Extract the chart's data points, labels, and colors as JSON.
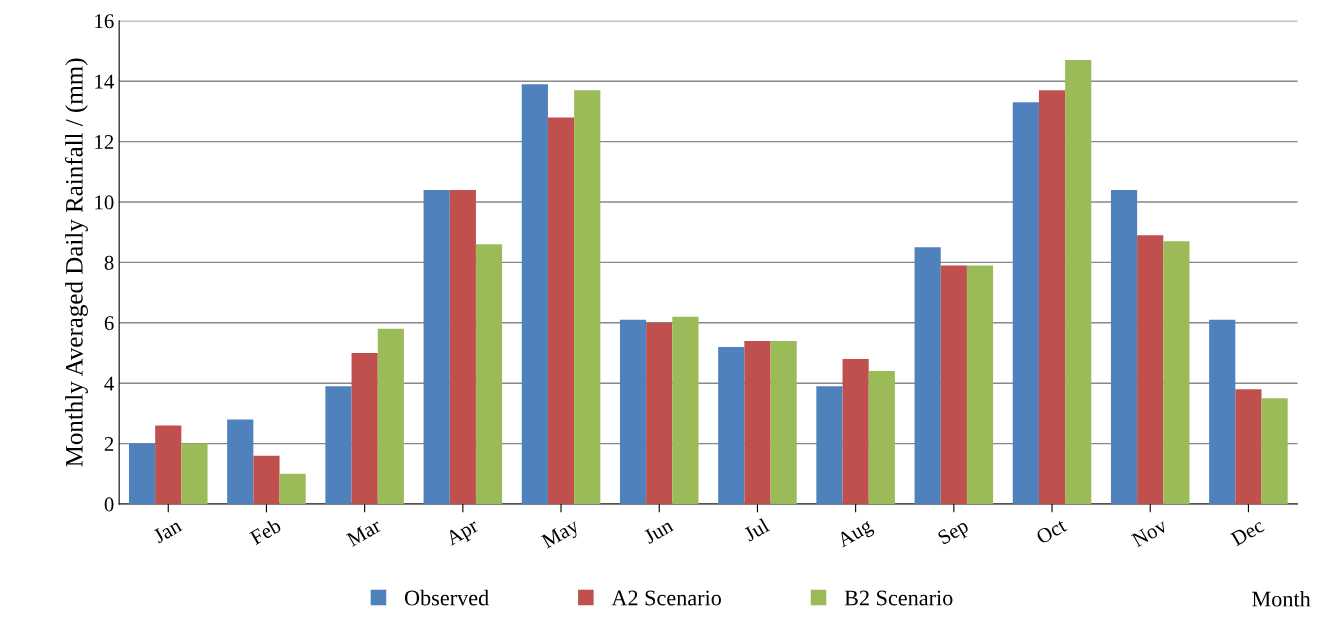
{
  "chart_data": {
    "type": "bar",
    "xlabel": "Month",
    "ylabel": "Monthly Averaged Daily Rainfall / (mm)",
    "categories": [
      "Jan",
      "Feb",
      "Mar",
      "Apr",
      "May",
      "Jun",
      "Jul",
      "Aug",
      "Sep",
      "Oct",
      "Nov",
      "Dec"
    ],
    "series": [
      {
        "name": "Observed",
        "color": "#4f81bd",
        "values": [
          2.0,
          2.8,
          3.9,
          10.4,
          13.9,
          6.1,
          5.2,
          3.9,
          8.5,
          13.3,
          10.4,
          6.1
        ]
      },
      {
        "name": "A2 Scenario",
        "color": "#c0504d",
        "values": [
          2.6,
          1.6,
          5.0,
          10.4,
          12.8,
          6.0,
          5.4,
          4.8,
          7.9,
          13.7,
          8.9,
          3.8
        ]
      },
      {
        "name": "B2 Scenario",
        "color": "#9bbb59",
        "values": [
          2.0,
          1.0,
          5.8,
          8.6,
          13.7,
          6.2,
          5.4,
          4.4,
          7.9,
          14.7,
          8.7,
          3.5
        ]
      }
    ],
    "ylim": [
      0,
      16
    ],
    "yticks": [
      0,
      2,
      4,
      6,
      8,
      10,
      12,
      14,
      16
    ],
    "grid": "y",
    "legend": "bottom"
  }
}
